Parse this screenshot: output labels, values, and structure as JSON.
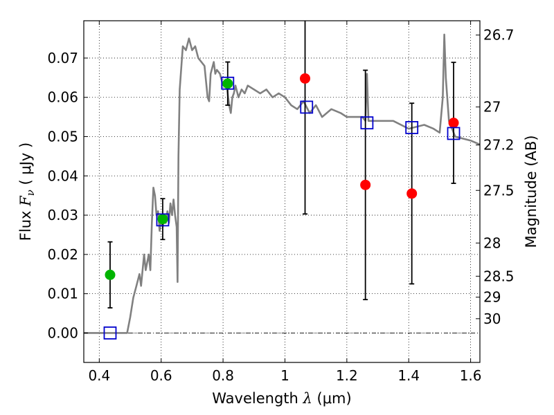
{
  "chart_data": {
    "type": "scatter",
    "xlabel": "Wavelength  λ (μm)",
    "ylabel": "Flux  F_ν ( μJy )",
    "ylabel_parts": {
      "prefix": "Flux  ",
      "symbol": "F",
      "subscript": "ν",
      "suffix": "  ( μJy )"
    },
    "xlabel_parts": {
      "prefix": "Wavelength  ",
      "symbol": "λ",
      "suffix": " (μm)"
    },
    "y2label": "Magnitude (AB)",
    "xlim": [
      0.35,
      1.63
    ],
    "ylim": [
      -0.0075,
      0.0795
    ],
    "grid": true,
    "x_ticks": [
      0.4,
      0.6,
      0.8,
      1.0,
      1.2,
      1.4,
      1.6
    ],
    "x_tick_labels": [
      "0.4",
      "0.6",
      "0.8",
      "1",
      "1.2",
      "1.4",
      "1.6"
    ],
    "y_ticks": [
      0.0,
      0.01,
      0.02,
      0.03,
      0.04,
      0.05,
      0.06,
      0.07
    ],
    "y_tick_labels": [
      "0.00",
      "0.01",
      "0.02",
      "0.03",
      "0.04",
      "0.05",
      "0.06",
      "0.07"
    ],
    "mag_ticks": [
      26.7,
      27,
      27.2,
      27.5,
      28,
      28.5,
      29,
      30
    ],
    "mag_tick_labels": [
      "26.7",
      "27",
      "27.2",
      "27.5",
      "28",
      "28.5",
      "29",
      "30"
    ],
    "model_spectrum": {
      "color": "#808080",
      "x": [
        0.35,
        0.47,
        0.49,
        0.5,
        0.51,
        0.52,
        0.53,
        0.535,
        0.545,
        0.55,
        0.56,
        0.565,
        0.57,
        0.575,
        0.58,
        0.585,
        0.59,
        0.595,
        0.6,
        0.605,
        0.61,
        0.615,
        0.62,
        0.625,
        0.63,
        0.635,
        0.64,
        0.645,
        0.65,
        0.653,
        0.656,
        0.66,
        0.67,
        0.68,
        0.69,
        0.7,
        0.71,
        0.72,
        0.73,
        0.74,
        0.75,
        0.755,
        0.76,
        0.77,
        0.775,
        0.78,
        0.79,
        0.8,
        0.81,
        0.82,
        0.825,
        0.83,
        0.835,
        0.84,
        0.85,
        0.86,
        0.87,
        0.88,
        0.9,
        0.92,
        0.94,
        0.96,
        0.98,
        1.0,
        1.02,
        1.04,
        1.06,
        1.08,
        1.1,
        1.12,
        1.15,
        1.18,
        1.2,
        1.22,
        1.25,
        1.26,
        1.265,
        1.27,
        1.3,
        1.35,
        1.4,
        1.45,
        1.48,
        1.5,
        1.51,
        1.515,
        1.52,
        1.53,
        1.54,
        1.55,
        1.6,
        1.63
      ],
      "y": [
        0,
        0,
        0,
        0.004,
        0.009,
        0.012,
        0.015,
        0.012,
        0.02,
        0.016,
        0.02,
        0.016,
        0.028,
        0.037,
        0.035,
        0.03,
        0.031,
        0.026,
        0.029,
        0.027,
        0.03,
        0.028,
        0.031,
        0.028,
        0.033,
        0.03,
        0.034,
        0.03,
        0.027,
        0.013,
        0.045,
        0.062,
        0.073,
        0.072,
        0.075,
        0.072,
        0.073,
        0.07,
        0.069,
        0.068,
        0.06,
        0.059,
        0.066,
        0.069,
        0.066,
        0.067,
        0.066,
        0.063,
        0.064,
        0.058,
        0.056,
        0.06,
        0.061,
        0.063,
        0.06,
        0.062,
        0.061,
        0.063,
        0.062,
        0.061,
        0.062,
        0.06,
        0.061,
        0.06,
        0.058,
        0.057,
        0.059,
        0.056,
        0.058,
        0.055,
        0.057,
        0.056,
        0.055,
        0.055,
        0.055,
        0.054,
        0.066,
        0.054,
        0.054,
        0.054,
        0.052,
        0.053,
        0.052,
        0.051,
        0.06,
        0.076,
        0.065,
        0.054,
        0.052,
        0.05,
        0.049,
        0.048
      ]
    },
    "series": [
      {
        "name": "green points",
        "marker": "circle",
        "color": "#00b400",
        "x": [
          0.435,
          0.605,
          0.815
        ],
        "y": [
          0.0148,
          0.029,
          0.0635
        ],
        "yerr": [
          0.0084,
          0.0052,
          0.0055
        ]
      },
      {
        "name": "red points",
        "marker": "circle",
        "color": "#ff0000",
        "x": [
          1.065,
          1.26,
          1.41,
          1.545
        ],
        "y": [
          0.0648,
          0.0377,
          0.0355,
          0.0535
        ],
        "yerr": [
          0.0345,
          0.0292,
          0.023,
          0.0154
        ]
      },
      {
        "name": "model photometry",
        "marker": "open-square",
        "color": "#0000cc",
        "x": [
          0.435,
          0.605,
          0.815,
          1.07,
          1.265,
          1.41,
          1.545
        ],
        "y": [
          0.0,
          0.0288,
          0.0636,
          0.0575,
          0.0535,
          0.0523,
          0.0508
        ]
      }
    ]
  }
}
